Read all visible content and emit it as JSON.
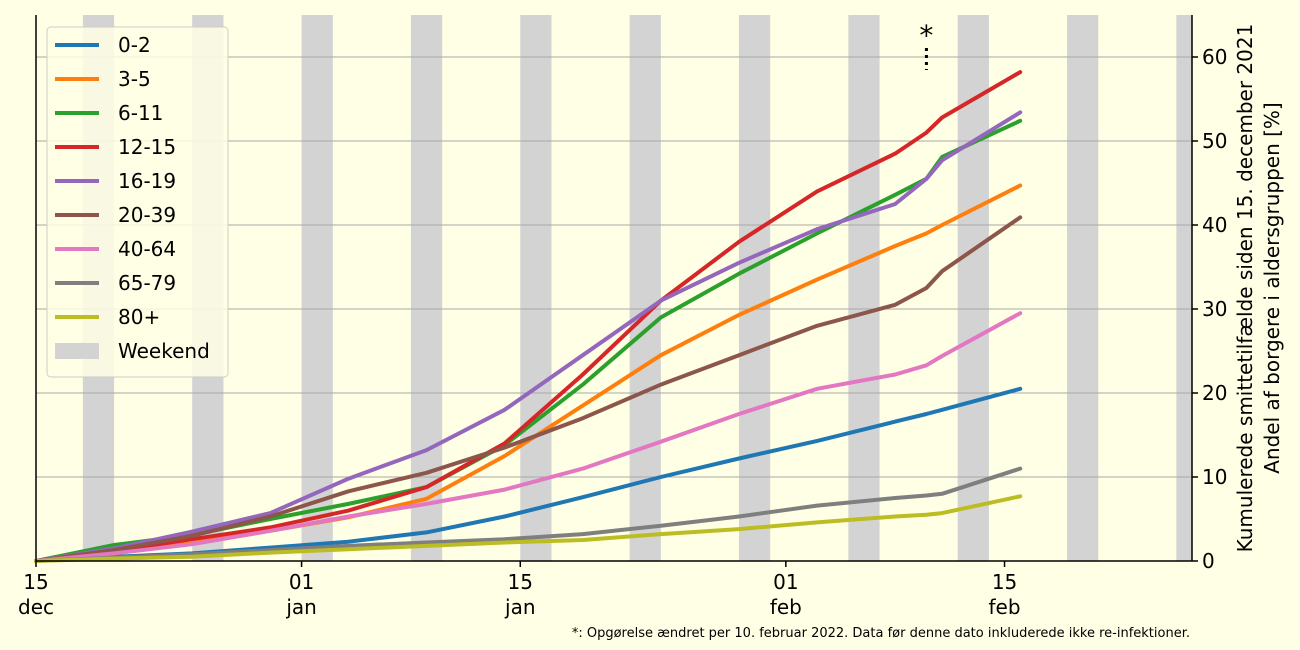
{
  "chart_data": {
    "type": "line",
    "ylabel_lines": [
      "Kumulerede smittetilfælde siden 15. december 2021",
      "Andel af borgere i aldersgruppen [%]"
    ],
    "ylim": [
      0,
      65
    ],
    "y_ticks": [
      0,
      10,
      20,
      30,
      40,
      50,
      60
    ],
    "y_axis_side": "right",
    "grid": "horizontal",
    "legend_placement": "top-left",
    "x_ticks": [
      {
        "date": "2021-12-15",
        "label_top": "15",
        "label_bottom": "dec"
      },
      {
        "date": "2022-01-01",
        "label_top": "01",
        "label_bottom": "jan"
      },
      {
        "date": "2022-01-15",
        "label_top": "15",
        "label_bottom": "jan"
      },
      {
        "date": "2022-02-01",
        "label_top": "01",
        "label_bottom": "feb"
      },
      {
        "date": "2022-02-15",
        "label_top": "15",
        "label_bottom": "feb"
      }
    ],
    "xlim": [
      "2021-12-15",
      "2022-02-27"
    ],
    "weekend_label": "Weekend",
    "weekend_color": "#d3d3d3",
    "weekends": [
      [
        "2021-12-18",
        "2021-12-19"
      ],
      [
        "2021-12-25",
        "2021-12-26"
      ],
      [
        "2022-01-01",
        "2022-01-02"
      ],
      [
        "2022-01-08",
        "2022-01-09"
      ],
      [
        "2022-01-15",
        "2022-01-16"
      ],
      [
        "2022-01-22",
        "2022-01-23"
      ],
      [
        "2022-01-29",
        "2022-01-30"
      ],
      [
        "2022-02-05",
        "2022-02-06"
      ],
      [
        "2022-02-12",
        "2022-02-13"
      ],
      [
        "2022-02-19",
        "2022-02-20"
      ],
      [
        "2022-02-26",
        "2022-02-27"
      ]
    ],
    "x": [
      "2021-12-15",
      "2021-12-20",
      "2021-12-25",
      "2021-12-30",
      "2022-01-04",
      "2022-01-09",
      "2022-01-14",
      "2022-01-19",
      "2022-01-24",
      "2022-01-29",
      "2022-02-03",
      "2022-02-08",
      "2022-02-10",
      "2022-02-11",
      "2022-02-16"
    ],
    "series": [
      {
        "name": "0-2",
        "color": "#1f77b4",
        "values": [
          0,
          0.5,
          0.9,
          1.6,
          2.3,
          3.4,
          5.3,
          7.6,
          10.0,
          12.2,
          14.3,
          16.6,
          17.5,
          18.0,
          20.5
        ]
      },
      {
        "name": "3-5",
        "color": "#ff7f0e",
        "values": [
          0,
          1.2,
          2.1,
          3.6,
          5.2,
          7.4,
          12.5,
          18.5,
          24.5,
          29.3,
          33.5,
          37.5,
          39.0,
          40.0,
          44.7
        ]
      },
      {
        "name": "6-11",
        "color": "#2ca02c",
        "values": [
          0,
          1.9,
          3.1,
          5.0,
          6.8,
          8.8,
          13.8,
          21.0,
          29.0,
          34.2,
          39.0,
          43.6,
          45.5,
          48.1,
          52.4
        ]
      },
      {
        "name": "12-15",
        "color": "#d62728",
        "values": [
          0,
          1.2,
          2.6,
          4.0,
          6.0,
          8.8,
          14.0,
          22.2,
          31.0,
          38.0,
          44.0,
          48.5,
          51.0,
          52.8,
          58.2
        ]
      },
      {
        "name": "16-19",
        "color": "#9467bd",
        "values": [
          0,
          1.5,
          3.5,
          5.7,
          9.8,
          13.2,
          18.0,
          24.5,
          31.0,
          35.5,
          39.5,
          42.5,
          45.5,
          47.7,
          53.4
        ]
      },
      {
        "name": "20-39",
        "color": "#8c564b",
        "values": [
          0,
          1.3,
          3.0,
          5.3,
          8.3,
          10.5,
          13.5,
          17.0,
          21.0,
          24.5,
          28.0,
          30.5,
          32.5,
          34.5,
          40.9
        ]
      },
      {
        "name": "40-64",
        "color": "#e377c2",
        "values": [
          0,
          0.9,
          2.0,
          3.6,
          5.3,
          6.8,
          8.5,
          11.0,
          14.2,
          17.5,
          20.5,
          22.2,
          23.3,
          24.4,
          29.5
        ]
      },
      {
        "name": "65-79",
        "color": "#7f7f7f",
        "values": [
          0,
          0.4,
          0.8,
          1.3,
          1.8,
          2.2,
          2.6,
          3.2,
          4.2,
          5.3,
          6.6,
          7.5,
          7.8,
          8.0,
          11.0
        ]
      },
      {
        "name": "80+",
        "color": "#bcbd22",
        "values": [
          0,
          0.3,
          0.5,
          1.0,
          1.4,
          1.8,
          2.2,
          2.5,
          3.2,
          3.8,
          4.6,
          5.3,
          5.5,
          5.7,
          7.7
        ]
      }
    ],
    "annotation": {
      "date": "2022-02-10",
      "text": "*"
    },
    "footnote": "*: Opgørelse ændret per 10. februar 2022. Data før denne dato inkluderede ikke re-infektioner."
  }
}
